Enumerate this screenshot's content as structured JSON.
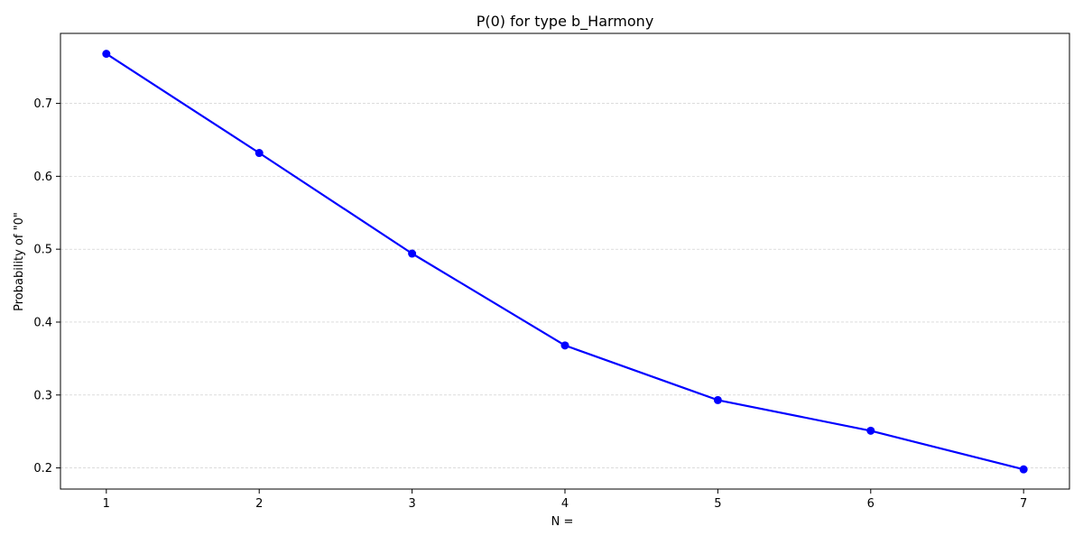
{
  "chart_data": {
    "type": "line",
    "title": "P(0) for type b_Harmony",
    "xlabel": "N =",
    "ylabel": "Probability of \"0\"",
    "x": [
      1,
      2,
      3,
      4,
      5,
      6,
      7
    ],
    "x_tick_labels": [
      "1",
      "2",
      "3",
      "4",
      "5",
      "6",
      "7"
    ],
    "y_ticks": [
      0.2,
      0.3,
      0.4,
      0.5,
      0.6,
      0.7
    ],
    "y_tick_labels": [
      "0.2",
      "0.3",
      "0.4",
      "0.5",
      "0.6",
      "0.7"
    ],
    "xlim": [
      0.7,
      7.3
    ],
    "ylim": [
      0.171,
      0.796
    ],
    "grid": {
      "y": true,
      "x": false,
      "style": "dashed"
    },
    "series": [
      {
        "values": [
          0.768,
          0.632,
          0.494,
          0.368,
          0.293,
          0.251,
          0.198
        ],
        "color": "#0000ff",
        "marker": "circle"
      }
    ]
  }
}
